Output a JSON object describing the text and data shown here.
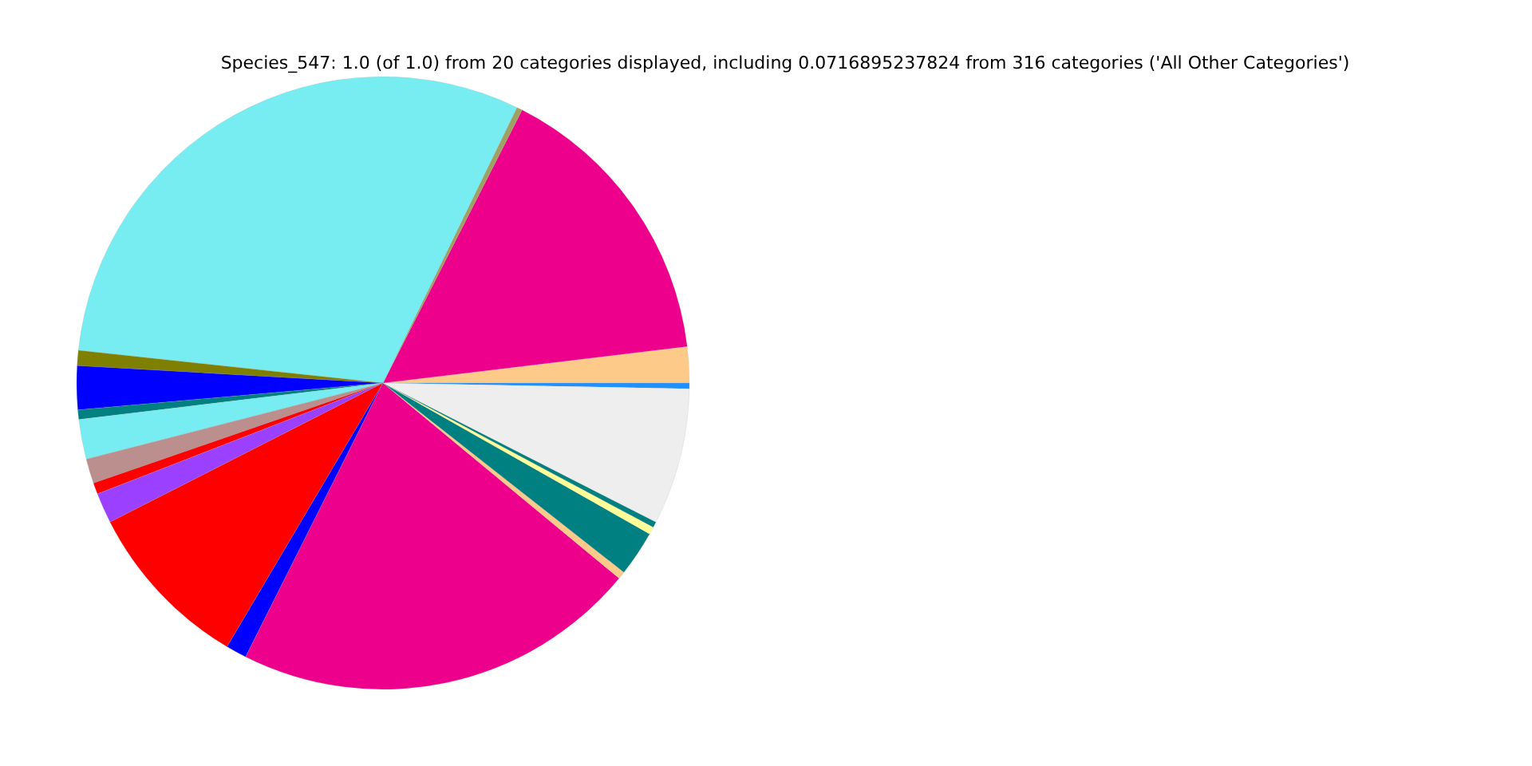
{
  "chart_data": {
    "type": "pie",
    "title": "Species_547: 1.0 (of 1.0) from 20 categories displayed, including 0.0716895237824 from 316 categories ('All Other Categories')",
    "categories": [
      null,
      null,
      null,
      null,
      null,
      null,
      null,
      null,
      null,
      null,
      null,
      null,
      null,
      null,
      null,
      null,
      null,
      null,
      null,
      null
    ],
    "values": [
      0.3,
      1.9,
      15.6,
      0.3,
      30.5,
      0.8,
      2.3,
      0.5,
      2.1,
      1.3,
      0.6,
      1.6,
      9.0,
      1.1,
      21.4,
      0.4,
      2.4,
      0.4,
      0.3,
      7.2
    ],
    "colors": [
      "#1e90ff",
      "#fdca8a",
      "#ec008c",
      "#a0a060",
      "#77ecf1",
      "#808000",
      "#0000ff",
      "#008080",
      "#77ecf1",
      "#bc8f8f",
      "#ff0000",
      "#9b40ff",
      "#ff0000",
      "#0000ff",
      "#ec008c",
      "#fdca8a",
      "#008080",
      "#ffff99",
      "#008080",
      "#eeeeee"
    ],
    "legend": false
  }
}
